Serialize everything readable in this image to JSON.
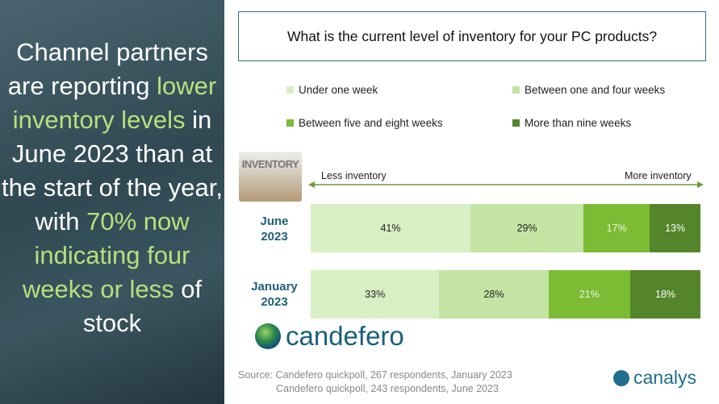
{
  "headline": {
    "p1": "Channel partners are reporting ",
    "p2": "lower inventory levels",
    "p3": " in June 2023 than at the start of the year, with ",
    "p4": "70% now indicating four weeks or less",
    "p5": " of stock"
  },
  "question": "What is the current level of inventory for your PC products?",
  "image_text": "INVENTORY",
  "axis": {
    "less": "Less inventory",
    "more": "More inventory"
  },
  "brand": {
    "candefero": "candefero",
    "canalys": "canalys"
  },
  "source": {
    "line1": "Source: Candefero quickpoll, 267 respondents, January 2023",
    "line2": "Candefero quickpoll, 243 respondents, June 2023"
  },
  "chart_data": {
    "type": "bar",
    "orientation": "horizontal",
    "stacked": true,
    "title": "What is the current level of inventory for your PC products?",
    "categories": [
      "June 2023",
      "January 2023"
    ],
    "category_labels": [
      [
        "June",
        "2023"
      ],
      [
        "January",
        "2023"
      ]
    ],
    "series": [
      {
        "name": "Under one week",
        "color": "#d8efc3",
        "label_color": "#222222",
        "values": [
          41,
          33
        ],
        "labels": [
          "41%",
          "33%"
        ]
      },
      {
        "name": "Between one and four weeks",
        "color": "#c4e4a4",
        "label_color": "#222222",
        "values": [
          29,
          28
        ],
        "labels": [
          "29%",
          "28%"
        ]
      },
      {
        "name": "Between five and eight weeks",
        "color": "#7cbb34",
        "label_color": "#e8f5da",
        "values": [
          17,
          21
        ],
        "labels": [
          "17%",
          "21%"
        ]
      },
      {
        "name": "More than nine weeks",
        "color": "#55852a",
        "label_color": "#ffffff",
        "values": [
          13,
          18
        ],
        "labels": [
          "13%",
          "18%"
        ]
      }
    ],
    "xlim": [
      0,
      100
    ],
    "legend": "top"
  }
}
